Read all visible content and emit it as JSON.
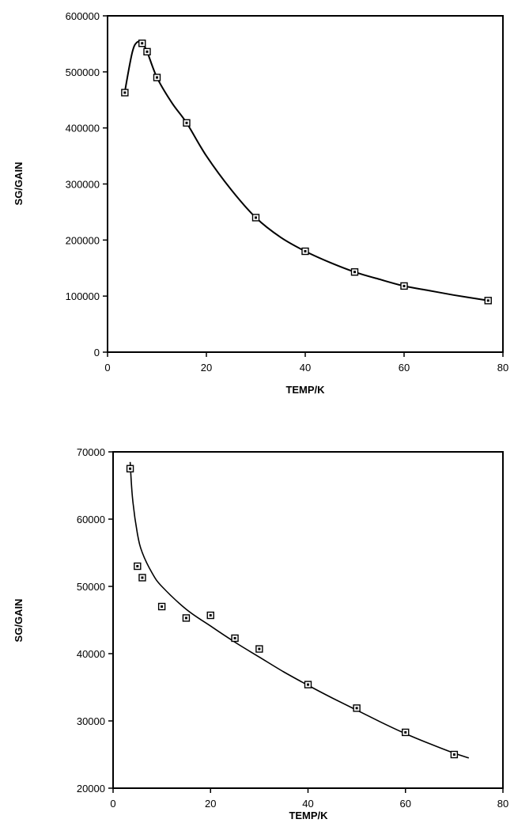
{
  "chart_data": [
    {
      "type": "scatter",
      "title": "",
      "xlabel": "TEMP/K",
      "ylabel": "SG/GAIN",
      "xlim": [
        0,
        80
      ],
      "ylim": [
        0,
        600000
      ],
      "grid": false,
      "x_ticks": [
        0,
        20,
        40,
        60,
        80
      ],
      "x_tick_labels": [
        "0",
        "20",
        "40",
        "60",
        "80"
      ],
      "y_ticks": [
        0,
        100000,
        200000,
        300000,
        400000,
        500000,
        600000
      ],
      "y_tick_labels": [
        "0",
        "100000",
        "200000",
        "300000",
        "400000",
        "500000",
        "600000"
      ],
      "series": [
        {
          "marker": "square",
          "x": [
            3.5,
            7,
            8,
            10,
            16,
            30,
            40,
            50,
            60,
            77
          ],
          "y": [
            463000,
            551000,
            536000,
            490000,
            409000,
            240000,
            180000,
            143000,
            118000,
            92000
          ]
        }
      ],
      "fit_curve": {
        "x": [
          3.5,
          5,
          6,
          7,
          8,
          10,
          13,
          16,
          20,
          25,
          30,
          35,
          40,
          45,
          50,
          55,
          60,
          65,
          70,
          77
        ],
        "y": [
          465000,
          535000,
          553000,
          551000,
          536000,
          490000,
          445000,
          409000,
          350000,
          290000,
          240000,
          205000,
          180000,
          160000,
          143000,
          130000,
          118000,
          110000,
          102000,
          92000
        ]
      }
    },
    {
      "type": "scatter",
      "title": "",
      "xlabel": "TEMP/K",
      "ylabel": "SG/GAIN",
      "xlim": [
        0,
        80
      ],
      "ylim": [
        20000,
        70000
      ],
      "grid": false,
      "x_ticks": [
        0,
        20,
        40,
        60,
        80
      ],
      "x_tick_labels": [
        "0",
        "20",
        "40",
        "60",
        "80"
      ],
      "y_ticks": [
        20000,
        30000,
        40000,
        50000,
        60000,
        70000
      ],
      "y_tick_labels": [
        "20000",
        "30000",
        "40000",
        "50000",
        "60000",
        "70000"
      ],
      "series": [
        {
          "marker": "square",
          "x": [
            3.5,
            5,
            6,
            10,
            15,
            20,
            25,
            30,
            40,
            50,
            60,
            70
          ],
          "y": [
            67500,
            53000,
            51300,
            47000,
            45300,
            45700,
            42300,
            40700,
            35400,
            31900,
            28300,
            25000
          ]
        }
      ],
      "fit_curve": {
        "x": [
          3.5,
          4,
          5,
          6,
          8,
          10,
          15,
          20,
          25,
          30,
          35,
          40,
          45,
          50,
          55,
          60,
          65,
          70,
          73
        ],
        "y": [
          68500,
          63000,
          57800,
          55000,
          52000,
          50000,
          46600,
          44100,
          41700,
          39500,
          37300,
          35300,
          33400,
          31600,
          29800,
          28100,
          26600,
          25200,
          24500
        ]
      }
    }
  ]
}
